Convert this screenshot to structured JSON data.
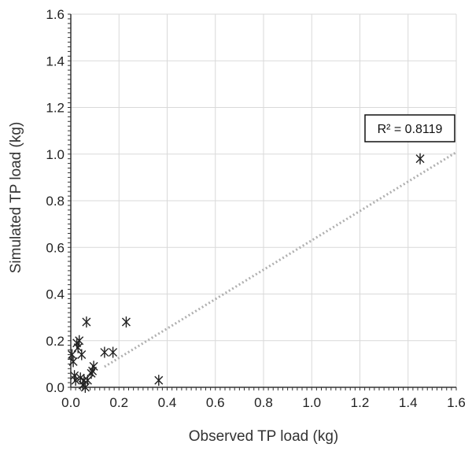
{
  "chart_data": {
    "type": "scatter",
    "title": "",
    "xlabel": "Observed TP load (kg)",
    "ylabel": "Simulated TP load (kg)",
    "xlim": [
      0.0,
      1.6
    ],
    "ylim": [
      0.0,
      1.6
    ],
    "x_ticks": [
      "0.0",
      "0.2",
      "0.4",
      "0.6",
      "0.8",
      "1.0",
      "1.2",
      "1.4",
      "1.6"
    ],
    "y_ticks": [
      "0.0",
      "0.2",
      "0.4",
      "0.6",
      "0.8",
      "1.0",
      "1.2",
      "1.4",
      "1.6"
    ],
    "grid": true,
    "marker": "asterisk",
    "marker_color": "#222222",
    "trendline": {
      "style": "dotted",
      "color": "#b0b0b0",
      "slope": 0.63,
      "intercept": 0.0
    },
    "annotation": "R² = 0.8119",
    "points": [
      {
        "x": 0.005,
        "y": 0.14
      },
      {
        "x": 0.01,
        "y": 0.11
      },
      {
        "x": 0.015,
        "y": 0.05
      },
      {
        "x": 0.02,
        "y": 0.03
      },
      {
        "x": 0.025,
        "y": 0.19
      },
      {
        "x": 0.03,
        "y": 0.17
      },
      {
        "x": 0.035,
        "y": 0.2
      },
      {
        "x": 0.04,
        "y": 0.04
      },
      {
        "x": 0.045,
        "y": 0.14
      },
      {
        "x": 0.05,
        "y": 0.01
      },
      {
        "x": 0.055,
        "y": 0.03
      },
      {
        "x": 0.06,
        "y": 0.0
      },
      {
        "x": 0.065,
        "y": 0.28
      },
      {
        "x": 0.07,
        "y": 0.03
      },
      {
        "x": 0.085,
        "y": 0.06
      },
      {
        "x": 0.09,
        "y": 0.07
      },
      {
        "x": 0.095,
        "y": 0.09
      },
      {
        "x": 0.14,
        "y": 0.15
      },
      {
        "x": 0.175,
        "y": 0.15
      },
      {
        "x": 0.23,
        "y": 0.28
      },
      {
        "x": 0.365,
        "y": 0.03
      },
      {
        "x": 1.45,
        "y": 0.98
      }
    ]
  }
}
